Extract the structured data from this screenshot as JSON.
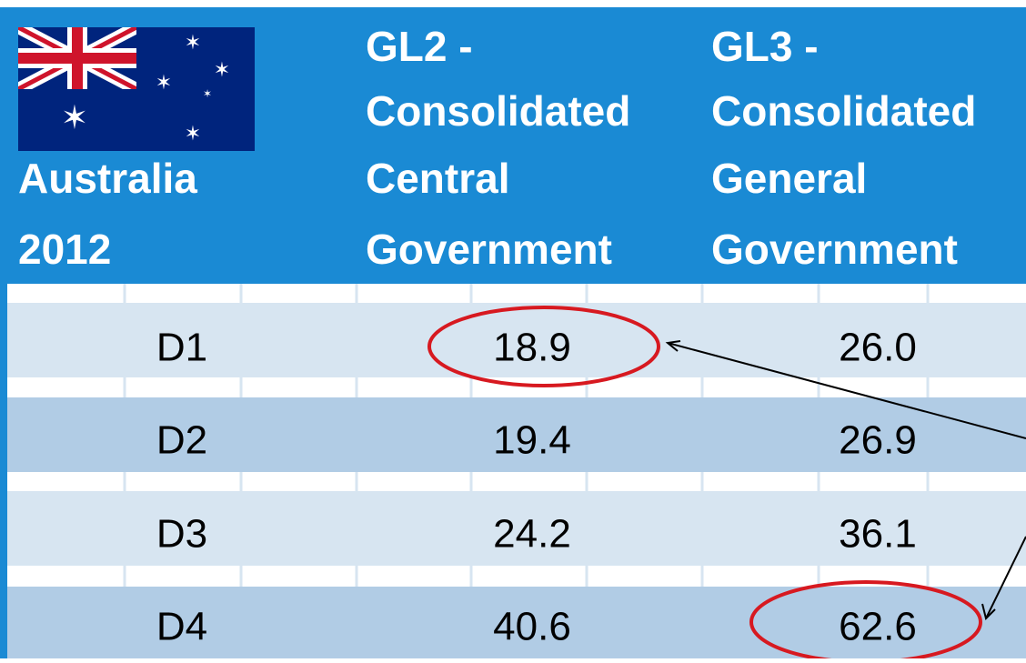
{
  "table": {
    "header": [
      [
        "Australia",
        "2012"
      ],
      [
        "GL2 -",
        "Consolidated",
        "Central",
        "Government"
      ],
      [
        "GL3 -",
        "Consolidated",
        "General",
        "Government"
      ]
    ],
    "rows": [
      [
        "D1",
        "18.9",
        "26.0"
      ],
      [
        "D2",
        "19.4",
        "26.9"
      ],
      [
        "D3",
        "24.2",
        "36.1"
      ],
      [
        "D4",
        "40.6",
        "62.6"
      ]
    ]
  }
}
